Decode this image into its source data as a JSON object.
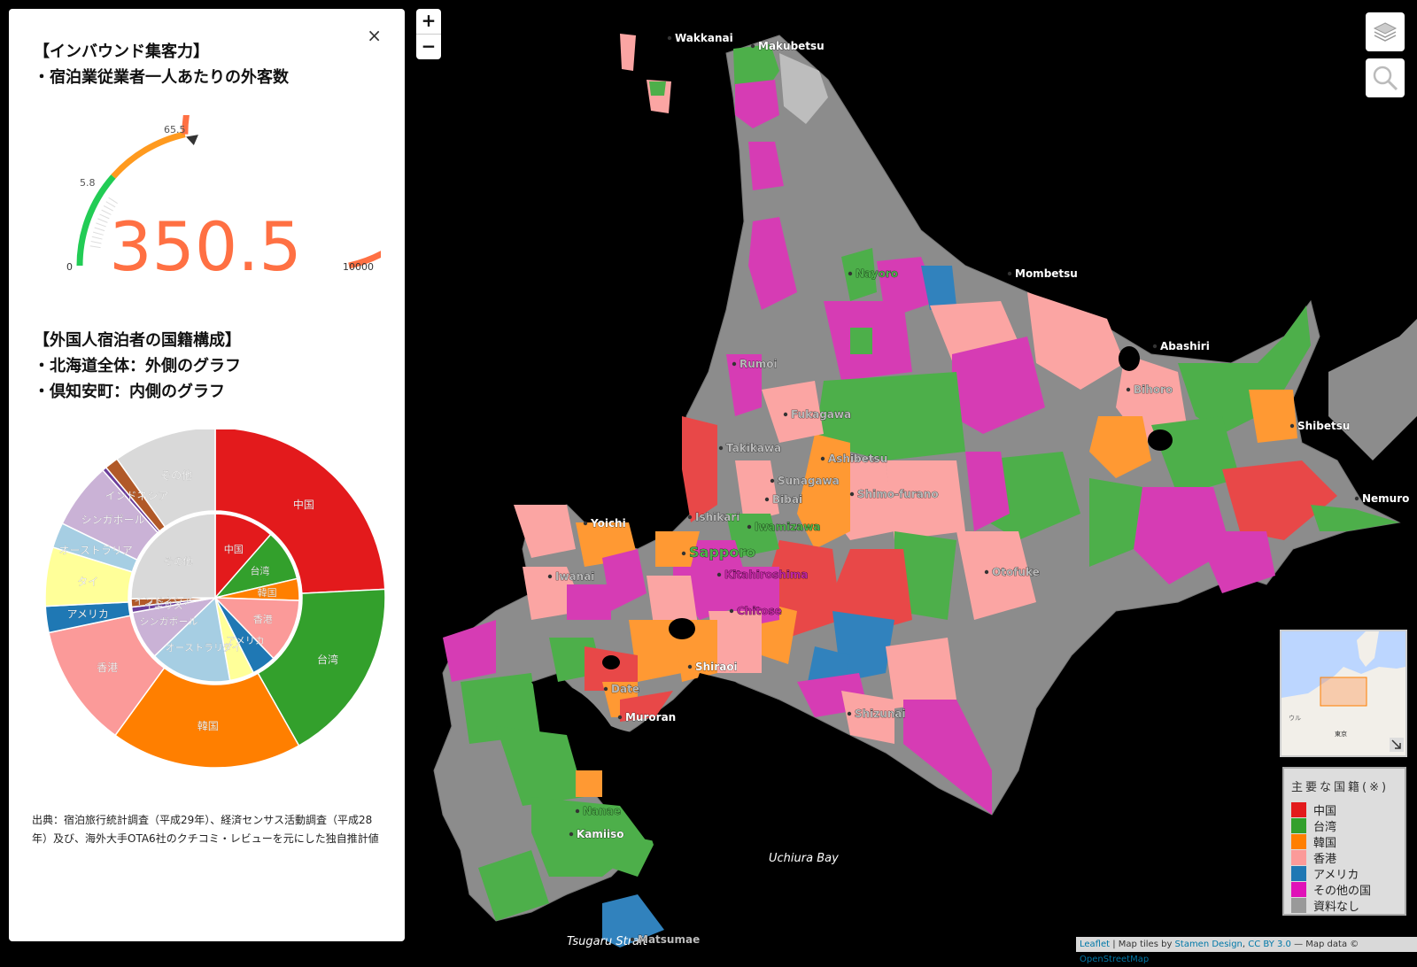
{
  "panel": {
    "close": "×",
    "title1": "【インバウンド集客力】",
    "subtitle1": "・宿泊業従業者一人あたりの外客数",
    "title2": "【外国人宿泊者の国籍構成】",
    "line2a": "・北海道全体：外側のグラフ",
    "line2b": "・倶知安町：内側のグラフ",
    "source": "出典：宿泊旅行統計調査（平成29年）、経済センサス活動調査（平成28年）及び、海外大手OTA6社のクチコミ・レビューを元にした独自推計値"
  },
  "gauge": {
    "value": 350.5,
    "value_text": "350.5",
    "min_text": "0",
    "max_text": "10000",
    "tick1_text": "5.8",
    "tick2_text": "65.5",
    "min": 0,
    "max": 10000,
    "thresholds": [
      5.8,
      65.5
    ],
    "colors": [
      "#22cc55",
      "#ff9a1f",
      "#ff7043"
    ],
    "value_color": "#ff7043"
  },
  "chart_data": {
    "type": "pie",
    "categories": [
      "中国",
      "台湾",
      "韓国",
      "香港",
      "アメリカ",
      "タイ",
      "オーストラリア",
      "シンガポール",
      "イギリス",
      "インドネシア",
      "その他"
    ],
    "colors": [
      "#e31a1c",
      "#33a02c",
      "#ff7f00",
      "#fb9a99",
      "#1f78b4",
      "#ffff99",
      "#a6cee3",
      "#cab2d6",
      "#6a3d9a",
      "#b15928",
      "#d9d9d9"
    ],
    "series": [
      {
        "name": "北海道全体",
        "values": [
          24.2,
          17.6,
          18.2,
          11.7,
          2.5,
          5.6,
          2.4,
          6.3,
          0.4,
          1.3,
          9.8
        ]
      },
      {
        "name": "倶知安町",
        "values": [
          11.0,
          9.5,
          4.0,
          11.8,
          4.5,
          4.5,
          15.0,
          9.0,
          1.0,
          1.5,
          24.2
        ]
      }
    ]
  },
  "map": {
    "zoom_in": "+",
    "zoom_out": "−",
    "bay_label": "Uchiura Bay",
    "strait_label": "Tsugaru Strait",
    "cities": [
      {
        "name": "Wakkanai",
        "style": "white"
      },
      {
        "name": "Makubetsu",
        "style": "white"
      },
      {
        "name": "Nayoro",
        "style": "green"
      },
      {
        "name": "Mombetsu",
        "style": "white"
      },
      {
        "name": "Abashiri",
        "style": "white"
      },
      {
        "name": "Bihoro",
        "style": "gray"
      },
      {
        "name": "Shibetsu",
        "style": "white"
      },
      {
        "name": "Nemuro",
        "style": "white"
      },
      {
        "name": "Rumoi",
        "style": "gray"
      },
      {
        "name": "Fukagawa",
        "style": "gray"
      },
      {
        "name": "Takikawa",
        "style": "gray"
      },
      {
        "name": "Ashibetsu",
        "style": "gray"
      },
      {
        "name": "Sunagawa",
        "style": "gray"
      },
      {
        "name": "Shimo-furano",
        "style": "gray"
      },
      {
        "name": "Bibai",
        "style": "gray"
      },
      {
        "name": "Ishikari",
        "style": "gray"
      },
      {
        "name": "Yoichi",
        "style": "white"
      },
      {
        "name": "Iwamizawa",
        "style": "green"
      },
      {
        "name": "Sapporo",
        "style": "green"
      },
      {
        "name": "Iwanai",
        "style": "gray"
      },
      {
        "name": "Kitahiroshima",
        "style": "purple"
      },
      {
        "name": "Chitose",
        "style": "purple"
      },
      {
        "name": "Otofuke",
        "style": "gray"
      },
      {
        "name": "Shiraoi",
        "style": "white"
      },
      {
        "name": "Date",
        "style": "gray"
      },
      {
        "name": "Muroran",
        "style": "white"
      },
      {
        "name": "Shizunai",
        "style": "gray"
      },
      {
        "name": "Nanae",
        "style": "green"
      },
      {
        "name": "Kamiiso",
        "style": "white"
      },
      {
        "name": "Matsumae",
        "style": "gray"
      }
    ],
    "attribution": {
      "leaflet": "Leaflet",
      "tiles_prefix": " | Map tiles by ",
      "stamen": "Stamen Design",
      "sep": ", ",
      "license": "CC BY 3.0",
      "data_prefix": " — Map data © ",
      "osm": "OpenStreetMap"
    },
    "minimap_label": "東京",
    "minimap_label2": "ウル"
  },
  "legend": {
    "title": "主要な国籍(※)",
    "items": [
      {
        "label": "中国",
        "color": "#e31a1c"
      },
      {
        "label": "台湾",
        "color": "#33a02c"
      },
      {
        "label": "韓国",
        "color": "#ff7f00"
      },
      {
        "label": "香港",
        "color": "#fb9a99"
      },
      {
        "label": "アメリカ",
        "color": "#1f78b4"
      },
      {
        "label": "その他の国",
        "color": "#e012b8"
      },
      {
        "label": "資料なし",
        "color": "#999999"
      }
    ]
  }
}
